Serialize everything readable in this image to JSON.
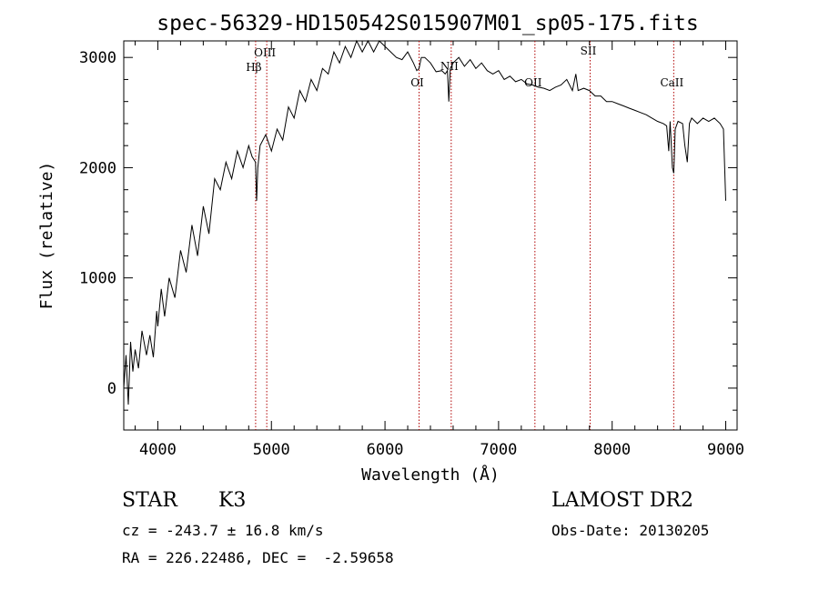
{
  "chart_data": {
    "type": "line",
    "title": "spec-56329-HD150542S015907M01_sp05-175.fits",
    "xlabel": "Wavelength (Å)",
    "ylabel": "Flux (relative)",
    "xlim": [
      3700,
      9100
    ],
    "ylim": [
      -380,
      3150
    ],
    "xticks": [
      4000,
      5000,
      6000,
      7000,
      8000,
      9000
    ],
    "yticks": [
      0,
      1000,
      2000,
      3000
    ],
    "grid": false,
    "series": [
      {
        "x": [
          3700,
          3720,
          3740,
          3760,
          3780,
          3800,
          3830,
          3860,
          3900,
          3930,
          3960,
          3990,
          4000,
          4030,
          4060,
          4100,
          4150,
          4200,
          4250,
          4300,
          4350,
          4400,
          4450,
          4500,
          4550,
          4600,
          4650,
          4700,
          4750,
          4800,
          4830,
          4860,
          4870,
          4880,
          4900,
          4950,
          5000,
          5050,
          5100,
          5150,
          5200,
          5250,
          5300,
          5350,
          5400,
          5450,
          5500,
          5550,
          5600,
          5650,
          5700,
          5750,
          5800,
          5850,
          5900,
          5950,
          6000,
          6050,
          6100,
          6150,
          6200,
          6250,
          6280,
          6300,
          6320,
          6350,
          6400,
          6450,
          6500,
          6530,
          6550,
          6562,
          6575,
          6600,
          6650,
          6700,
          6750,
          6800,
          6850,
          6900,
          6950,
          7000,
          7050,
          7100,
          7150,
          7200,
          7250,
          7300,
          7350,
          7400,
          7450,
          7500,
          7550,
          7600,
          7650,
          7680,
          7700,
          7750,
          7800,
          7850,
          7900,
          7950,
          8000,
          8050,
          8100,
          8150,
          8200,
          8250,
          8300,
          8350,
          8400,
          8450,
          8480,
          8498,
          8510,
          8530,
          8542,
          8555,
          8580,
          8620,
          8640,
          8662,
          8680,
          8700,
          8750,
          8800,
          8850,
          8900,
          8950,
          8980,
          9000
        ],
        "y": [
          0,
          300,
          -150,
          420,
          150,
          350,
          180,
          520,
          300,
          480,
          280,
          700,
          560,
          900,
          650,
          1000,
          820,
          1250,
          1050,
          1480,
          1200,
          1650,
          1400,
          1900,
          1800,
          2050,
          1900,
          2150,
          2000,
          2200,
          2100,
          2050,
          1700,
          2000,
          2200,
          2300,
          2150,
          2350,
          2250,
          2550,
          2450,
          2700,
          2600,
          2800,
          2700,
          2900,
          2850,
          3050,
          2950,
          3100,
          3000,
          3250,
          3050,
          3200,
          3050,
          3150,
          3100,
          3050,
          3000,
          2980,
          3050,
          2950,
          2880,
          2900,
          3000,
          3000,
          2950,
          2870,
          2880,
          2850,
          2880,
          2600,
          2900,
          2950,
          3000,
          2920,
          2980,
          2900,
          2950,
          2880,
          2850,
          2880,
          2800,
          2830,
          2780,
          2800,
          2760,
          2750,
          2730,
          2720,
          2700,
          2730,
          2750,
          2800,
          2700,
          2850,
          2700,
          2720,
          2700,
          2650,
          2650,
          2600,
          2600,
          2580,
          2560,
          2540,
          2520,
          2500,
          2480,
          2450,
          2420,
          2400,
          2380,
          2150,
          2420,
          2000,
          1950,
          2350,
          2420,
          2400,
          2200,
          2050,
          2400,
          2450,
          2400,
          2450,
          2420,
          2450,
          2400,
          2350,
          1700
        ]
      }
    ],
    "lines": [
      {
        "label": "Hβ",
        "x": 4861
      },
      {
        "label": "OIII",
        "x": 4959
      },
      {
        "label": "OI",
        "x": 6300
      },
      {
        "label": "NII",
        "x": 6583
      },
      {
        "label": "OII",
        "x": 7320
      },
      {
        "label": "SII",
        "x": 7806
      },
      {
        "label": "CaII",
        "x": 8542
      }
    ]
  },
  "info": {
    "object_type": "STAR",
    "subclass": "K3",
    "redshift": "cz = -243.7 ± 16.8 km/s",
    "coords": "RA = 226.22486, DEC =  -2.59658",
    "survey": "LAMOST DR2",
    "obs_date": "Obs-Date: 20130205"
  }
}
